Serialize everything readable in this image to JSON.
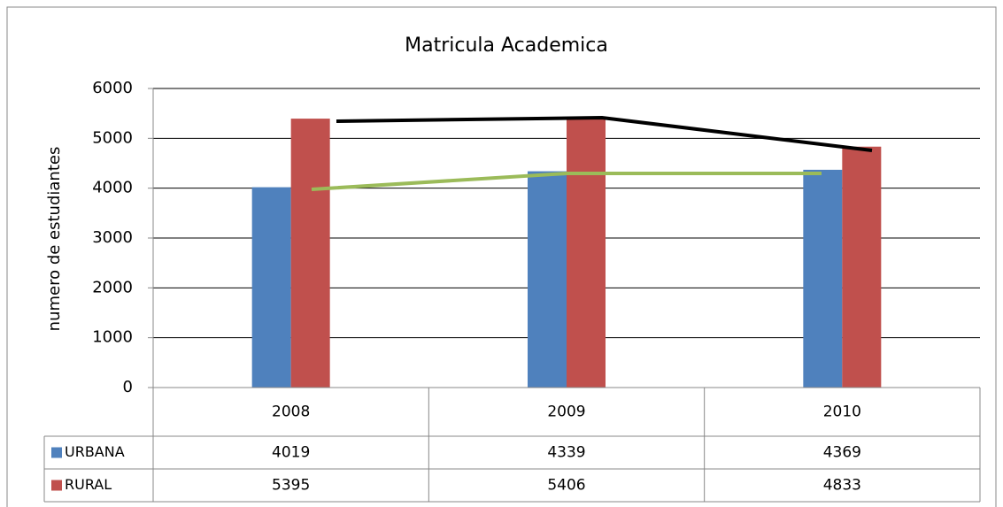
{
  "chart_data": {
    "type": "bar",
    "title": "Matricula Academica",
    "y_label": "numero de estudiantes",
    "categories": [
      "2008",
      "2009",
      "2010"
    ],
    "series": [
      {
        "name": "URBANA",
        "color": "#4f81bd",
        "values": [
          4019,
          4339,
          4369
        ]
      },
      {
        "name": "RURAL",
        "color": "#c0504d",
        "values": [
          5395,
          5406,
          4833
        ]
      }
    ],
    "ylim": [
      0,
      6000
    ],
    "yticks": [
      0,
      1000,
      2000,
      3000,
      4000,
      5000,
      6000
    ],
    "grid": true
  }
}
